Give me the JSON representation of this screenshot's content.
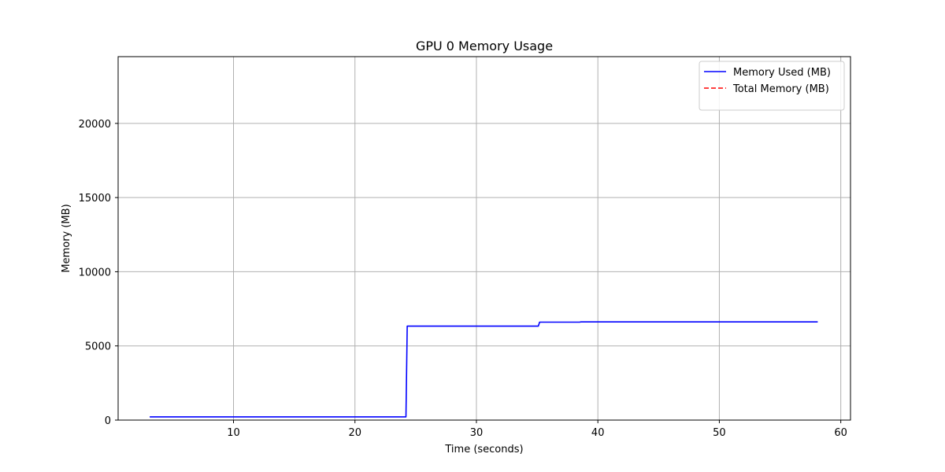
{
  "chart_data": {
    "type": "line",
    "title": "GPU 0 Memory Usage",
    "xlabel": "Time (seconds)",
    "ylabel": "Memory (MB)",
    "xlim": [
      0.5,
      60.8
    ],
    "ylim": [
      0,
      24500
    ],
    "xticks": [
      10,
      20,
      30,
      40,
      50,
      60
    ],
    "yticks": [
      0,
      5000,
      10000,
      15000,
      20000
    ],
    "grid": true,
    "legend_position": "top-right",
    "series": [
      {
        "name": "Memory Used (MB)",
        "color": "#0000ff",
        "style": "solid",
        "x": [
          3.1,
          24.2,
          24.3,
          35.1,
          35.2,
          38.5,
          38.6,
          58.1
        ],
        "y": [
          220,
          220,
          6330,
          6330,
          6600,
          6600,
          6620,
          6620
        ]
      },
      {
        "name": "Total Memory (MB)",
        "color": "#ff0000",
        "style": "dashed",
        "x": [],
        "y": []
      }
    ]
  }
}
